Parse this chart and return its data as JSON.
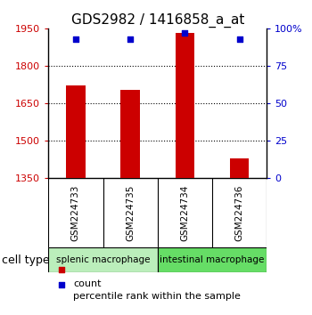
{
  "title": "GDS2982 / 1416858_a_at",
  "samples": [
    "GSM224733",
    "GSM224735",
    "GSM224734",
    "GSM224736"
  ],
  "counts": [
    1720,
    1705,
    1930,
    1430
  ],
  "percentiles": [
    93,
    93,
    97,
    93
  ],
  "ylim_left": [
    1350,
    1950
  ],
  "ylim_right": [
    0,
    100
  ],
  "yticks_left": [
    1350,
    1500,
    1650,
    1800,
    1950
  ],
  "yticks_right": [
    0,
    25,
    50,
    75,
    100
  ],
  "bar_color": "#cc0000",
  "dot_color": "#0000cc",
  "bar_width": 0.35,
  "groups": [
    {
      "label": "splenic macrophage",
      "indices": [
        0,
        1
      ],
      "color": "#bbeebb"
    },
    {
      "label": "intestinal macrophage",
      "indices": [
        2,
        3
      ],
      "color": "#66dd66"
    }
  ],
  "sample_box_color": "#cccccc",
  "cell_type_label": "cell type",
  "legend_count_label": "count",
  "legend_percentile_label": "percentile rank within the sample",
  "bg_color": "#ffffff",
  "dotted_line_color": "#000000",
  "left_tick_color": "#cc0000",
  "right_tick_color": "#0000cc",
  "grid_ticks": [
    1500,
    1650,
    1800
  ],
  "title_fontsize": 11,
  "tick_fontsize": 8,
  "sample_fontsize": 7.5,
  "group_fontsize": 7.5,
  "legend_fontsize": 8,
  "cell_type_fontsize": 9
}
